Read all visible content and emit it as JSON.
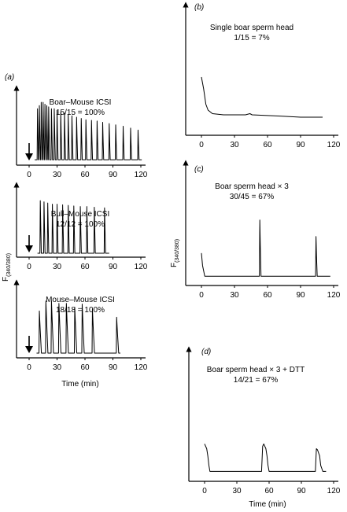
{
  "figure": {
    "ylabel_main": "F",
    "ylabel_sub": "(340/380)",
    "xlabel": "Time (min)"
  },
  "chart_data": [
    {
      "id": "a1",
      "type": "line",
      "panel_label": "(a)",
      "title": "Boar–Mouse ICSI",
      "subtitle": "15/15 = 100%",
      "xlabel": "",
      "ylabel": "",
      "xlim": [
        0,
        125
      ],
      "ylim": [
        0,
        1
      ],
      "xticks": [
        0,
        30,
        60,
        90,
        120
      ],
      "series": [
        {
          "baseline": 0.06,
          "spikes": [
            {
              "t": 9,
              "h": 0.85
            },
            {
              "t": 11,
              "h": 0.9
            },
            {
              "t": 13,
              "h": 0.95
            },
            {
              "t": 15,
              "h": 0.95
            },
            {
              "t": 17,
              "h": 0.92
            },
            {
              "t": 19,
              "h": 0.9
            },
            {
              "t": 21,
              "h": 0.88
            },
            {
              "t": 24,
              "h": 0.85
            },
            {
              "t": 27,
              "h": 0.85
            },
            {
              "t": 30,
              "h": 0.82
            },
            {
              "t": 34,
              "h": 0.8
            },
            {
              "t": 38,
              "h": 0.78
            },
            {
              "t": 42,
              "h": 0.76
            },
            {
              "t": 46,
              "h": 0.74
            },
            {
              "t": 51,
              "h": 0.72
            },
            {
              "t": 56,
              "h": 0.7
            },
            {
              "t": 61,
              "h": 0.68
            },
            {
              "t": 67,
              "h": 0.67
            },
            {
              "t": 73,
              "h": 0.66
            },
            {
              "t": 79,
              "h": 0.64
            },
            {
              "t": 86,
              "h": 0.62
            },
            {
              "t": 93,
              "h": 0.6
            },
            {
              "t": 101,
              "h": 0.58
            },
            {
              "t": 109,
              "h": 0.55
            },
            {
              "t": 117,
              "h": 0.52
            }
          ]
        }
      ],
      "arrow_at": 0
    },
    {
      "id": "a2",
      "type": "line",
      "title": "Bull–Mouse ICSI",
      "subtitle": "12/12 = 100%",
      "xlabel": "",
      "ylabel": "",
      "xlim": [
        0,
        125
      ],
      "ylim": [
        0,
        1
      ],
      "xticks": [
        0,
        30,
        60,
        90,
        120
      ],
      "series": [
        {
          "baseline": 0.04,
          "end_t": 86,
          "spikes": [
            {
              "t": 12,
              "h": 0.92
            },
            {
              "t": 16,
              "h": 0.9
            },
            {
              "t": 20,
              "h": 0.88
            },
            {
              "t": 25,
              "h": 0.86
            },
            {
              "t": 30,
              "h": 0.86
            },
            {
              "t": 36,
              "h": 0.85
            },
            {
              "t": 42,
              "h": 0.84
            },
            {
              "t": 48,
              "h": 0.83
            },
            {
              "t": 55,
              "h": 0.82
            },
            {
              "t": 62,
              "h": 0.82
            },
            {
              "t": 70,
              "h": 0.81
            },
            {
              "t": 81,
              "h": 0.8
            }
          ]
        }
      ],
      "arrow_at": 0
    },
    {
      "id": "a3",
      "type": "line",
      "title": "Mouse–Mouse ICSI",
      "subtitle": "18/18 = 100%",
      "xlabel": "Time (min)",
      "ylabel": "",
      "xlim": [
        0,
        125
      ],
      "ylim": [
        0,
        1
      ],
      "xticks": [
        0,
        30,
        60,
        90,
        120
      ],
      "series": [
        {
          "baseline": 0.05,
          "end_t": 98,
          "spikes": [
            {
              "t": 11,
              "h": 0.72
            },
            {
              "t": 18,
              "h": 0.88
            },
            {
              "t": 24,
              "h": 0.88
            },
            {
              "t": 32,
              "h": 0.84
            },
            {
              "t": 40,
              "h": 0.84
            },
            {
              "t": 49,
              "h": 0.78
            },
            {
              "t": 57,
              "h": 0.83
            },
            {
              "t": 68,
              "h": 0.75
            },
            {
              "t": 94,
              "h": 0.62
            }
          ]
        }
      ],
      "arrow_at": 0
    },
    {
      "id": "b",
      "type": "line",
      "panel_label": "(b)",
      "title": "Single boar sperm head",
      "subtitle": "1/15 = 7%",
      "xlabel": "",
      "ylabel": "",
      "xlim": [
        -3,
        123
      ],
      "ylim": [
        0,
        1
      ],
      "xticks": [
        0,
        30,
        60,
        90,
        120
      ],
      "series": [
        {
          "points": [
            [
              0,
              0.48
            ],
            [
              2,
              0.38
            ],
            [
              4,
              0.25
            ],
            [
              6,
              0.2
            ],
            [
              10,
              0.17
            ],
            [
              20,
              0.16
            ],
            [
              40,
              0.16
            ],
            [
              44,
              0.17
            ],
            [
              46,
              0.16
            ],
            [
              70,
              0.15
            ],
            [
              90,
              0.14
            ],
            [
              110,
              0.14
            ]
          ]
        }
      ]
    },
    {
      "id": "c",
      "type": "line",
      "panel_label": "(c)",
      "title": "Boar sperm head × 3",
      "subtitle": "30/45 = 67%",
      "xlabel": "",
      "ylabel": "",
      "xlim": [
        -3,
        123
      ],
      "ylim": [
        0,
        1
      ],
      "xticks": [
        0,
        30,
        60,
        90,
        120
      ],
      "series": [
        {
          "baseline": 0.07,
          "start_t": 0,
          "end_t": 117,
          "start_peak": 0.28,
          "spikes": [
            {
              "t": 53,
              "h": 0.58
            },
            {
              "t": 104,
              "h": 0.43
            }
          ]
        }
      ]
    },
    {
      "id": "d",
      "type": "line",
      "panel_label": "(d)",
      "title": "Boar sperm head × 3 + DTT",
      "subtitle": "14/21 = 67%",
      "xlabel": "Time (min)",
      "ylabel": "",
      "xlim": [
        -3,
        123
      ],
      "ylim": [
        0,
        1
      ],
      "xticks": [
        0,
        30,
        60,
        90,
        120
      ],
      "series": [
        {
          "points": [
            [
              0,
              0.3
            ],
            [
              2,
              0.26
            ],
            [
              3,
              0.2
            ],
            [
              4,
              0.12
            ],
            [
              5,
              0.07
            ],
            [
              20,
              0.07
            ],
            [
              53,
              0.07
            ],
            [
              54,
              0.28
            ],
            [
              55,
              0.3
            ],
            [
              57,
              0.26
            ],
            [
              58,
              0.2
            ],
            [
              59,
              0.12
            ],
            [
              60,
              0.07
            ],
            [
              103,
              0.07
            ],
            [
              104,
              0.26
            ],
            [
              105,
              0.25
            ],
            [
              107,
              0.2
            ],
            [
              108,
              0.12
            ],
            [
              110,
              0.07
            ],
            [
              113,
              0.07
            ]
          ]
        }
      ]
    }
  ]
}
